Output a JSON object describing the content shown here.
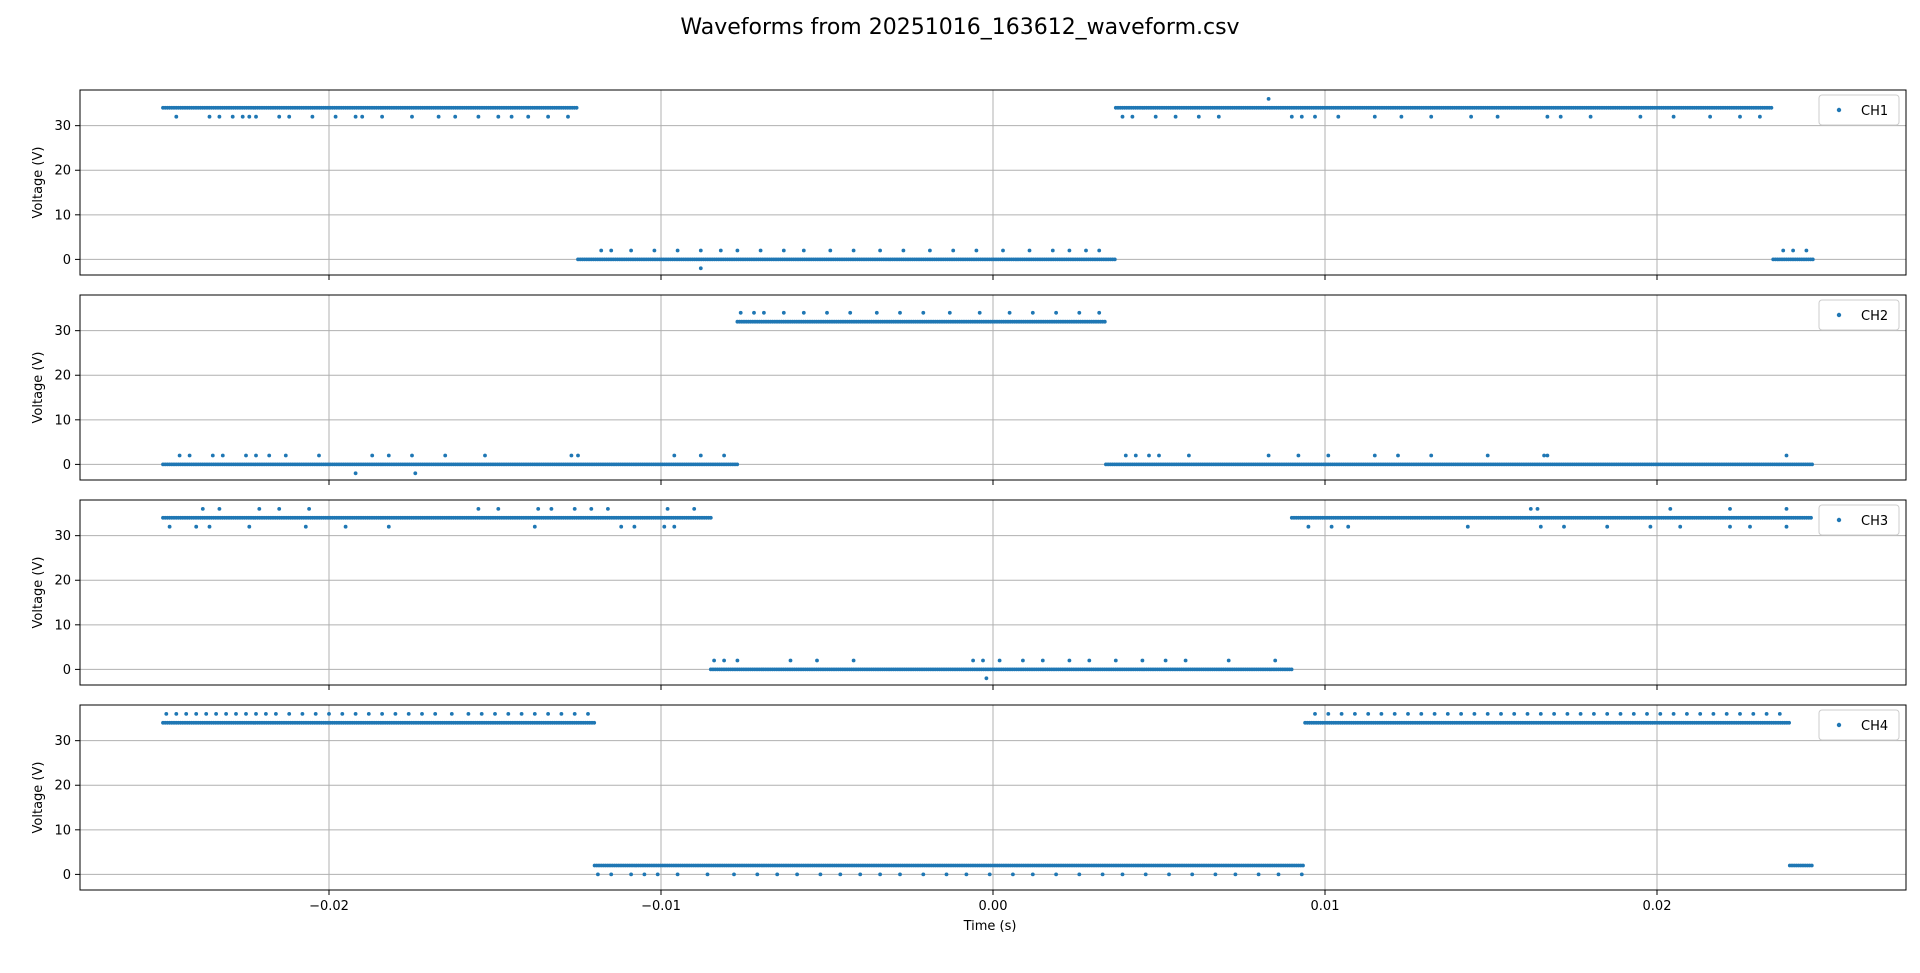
{
  "figure": {
    "title": "Waveforms from 20251016_163612_waveform.csv",
    "xlabel": "Time (s)",
    "ylabel": "Voltage (V)"
  },
  "colors": {
    "series": "#1f77b4",
    "grid": "#b0b0b0",
    "axes": "#000000"
  },
  "chart_data": [
    {
      "type": "scatter",
      "legend": "CH1",
      "legend_placement": "top-right",
      "xlim": [
        -0.0275,
        0.0275
      ],
      "ylim": [
        -3.5,
        38.0
      ],
      "x_ticks": [
        -0.02,
        -0.01,
        0.0,
        0.01,
        0.02
      ],
      "x_tick_labels": [],
      "y_ticks": [
        0,
        10,
        20,
        30
      ],
      "y_tick_labels": [
        "0",
        "10",
        "20",
        "30"
      ],
      "grid": true,
      "runs": [
        {
          "x": [
            -0.025,
            -0.0125
          ],
          "y": 34.0
        },
        {
          "x": [
            -0.0125,
            0.0037
          ],
          "y": 0.0
        },
        {
          "x": [
            0.0037,
            0.0235
          ],
          "y": 34.0
        },
        {
          "x": [
            0.0235,
            0.0247
          ],
          "y": 0.0
        }
      ],
      "outliers": [
        {
          "x": [
            -0.0246,
            -0.0236,
            -0.0233,
            -0.0229,
            -0.0226,
            -0.0224,
            -0.0222,
            -0.0215,
            -0.0212,
            -0.0205,
            -0.0198,
            -0.0192,
            -0.019,
            -0.0184,
            -0.0175,
            -0.0167,
            -0.0162,
            -0.0155,
            -0.0149,
            -0.0145,
            -0.014,
            -0.0134,
            -0.0128
          ],
          "y": 32.0
        },
        {
          "x": [
            -0.0118,
            -0.0115,
            -0.0109,
            -0.0102,
            -0.0095,
            -0.0088,
            -0.0082,
            -0.0077,
            -0.007,
            -0.0063,
            -0.0057,
            -0.0049,
            -0.0042,
            -0.0034,
            -0.0027,
            -0.0019,
            -0.0012,
            -0.0005,
            0.0003,
            0.0011,
            0.0018,
            0.0023,
            0.0028,
            0.0032
          ],
          "y": 2.0
        },
        {
          "x": [
            -0.0088
          ],
          "y": -2.0
        },
        {
          "x": [
            0.0039,
            0.0042,
            0.0049,
            0.0055,
            0.0062,
            0.0068,
            0.009,
            0.0093,
            0.0097,
            0.0104,
            0.0115,
            0.0123,
            0.0132,
            0.0144,
            0.0152,
            0.0167,
            0.0171,
            0.018,
            0.0195,
            0.0205,
            0.0216,
            0.0225,
            0.0231
          ],
          "y": 32.0
        },
        {
          "x": [
            0.0083
          ],
          "y": 36.0
        },
        {
          "x": [
            0.0238,
            0.0241,
            0.0245
          ],
          "y": 2.0
        }
      ]
    },
    {
      "type": "scatter",
      "legend": "CH2",
      "legend_placement": "top-right",
      "xlim": [
        -0.0275,
        0.0275
      ],
      "ylim": [
        -3.5,
        38.0
      ],
      "x_ticks": [
        -0.02,
        -0.01,
        0.0,
        0.01,
        0.02
      ],
      "x_tick_labels": [],
      "y_ticks": [
        0,
        10,
        20,
        30
      ],
      "y_tick_labels": [
        "0",
        "10",
        "20",
        "30"
      ],
      "grid": true,
      "runs": [
        {
          "x": [
            -0.025,
            -0.0077
          ],
          "y": 0.0
        },
        {
          "x": [
            -0.0077,
            0.0034
          ],
          "y": 32.0
        },
        {
          "x": [
            0.0034,
            0.0247
          ],
          "y": 0.0
        }
      ],
      "outliers": [
        {
          "x": [
            -0.0245,
            -0.0242,
            -0.0235,
            -0.0232,
            -0.0225,
            -0.0222,
            -0.0218,
            -0.0213,
            -0.0203,
            -0.0187,
            -0.0182,
            -0.0175,
            -0.0165,
            -0.0153,
            -0.0127,
            -0.0125,
            -0.0096,
            -0.0088,
            -0.0081
          ],
          "y": 2.0
        },
        {
          "x": [
            -0.0192,
            -0.0174
          ],
          "y": -2.0
        },
        {
          "x": [
            -0.0076,
            -0.0072,
            -0.0069,
            -0.0063,
            -0.0057,
            -0.005,
            -0.0043,
            -0.0035,
            -0.0028,
            -0.0021,
            -0.0013,
            -0.0004,
            0.0005,
            0.0012,
            0.0019,
            0.0026,
            0.0032
          ],
          "y": 34.0
        },
        {
          "x": [
            0.004,
            0.0043,
            0.0047,
            0.005,
            0.0059,
            0.0083,
            0.0092,
            0.0101,
            0.0115,
            0.0122,
            0.0132,
            0.0149,
            0.0166,
            0.0167,
            0.0239
          ],
          "y": 2.0
        }
      ]
    },
    {
      "type": "scatter",
      "legend": "CH3",
      "legend_placement": "top-right",
      "xlim": [
        -0.0275,
        0.0275
      ],
      "ylim": [
        -3.5,
        38.0
      ],
      "x_ticks": [
        -0.02,
        -0.01,
        0.0,
        0.01,
        0.02
      ],
      "x_tick_labels": [],
      "y_ticks": [
        0,
        10,
        20,
        30
      ],
      "y_tick_labels": [
        "0",
        "10",
        "20",
        "30"
      ],
      "grid": true,
      "runs": [
        {
          "x": [
            -0.025,
            -0.0085
          ],
          "y": 34.0
        },
        {
          "x": [
            -0.0085,
            0.009
          ],
          "y": 0.0
        },
        {
          "x": [
            0.009,
            0.0247
          ],
          "y": 34.0
        }
      ],
      "outliers": [
        {
          "x": [
            -0.0238,
            -0.0233,
            -0.0221,
            -0.0215,
            -0.0206,
            -0.0155,
            -0.0149,
            -0.0137,
            -0.0133,
            -0.0126,
            -0.0121,
            -0.0116,
            -0.0098,
            -0.009
          ],
          "y": 36.0
        },
        {
          "x": [
            -0.0248,
            -0.024,
            -0.0236,
            -0.0224,
            -0.0207,
            -0.0195,
            -0.0182,
            -0.0138,
            -0.0112,
            -0.0108,
            -0.0099,
            -0.0096
          ],
          "y": 32.0
        },
        {
          "x": [
            -0.0084,
            -0.0081,
            -0.0077,
            -0.0061,
            -0.0053,
            -0.0042,
            -0.0006,
            -0.0003,
            0.0002,
            0.0009,
            0.0015,
            0.0023,
            0.0029,
            0.0037,
            0.0045,
            0.0052,
            0.0058,
            0.0071,
            0.0085
          ],
          "y": 2.0
        },
        {
          "x": [
            -0.0002
          ],
          "y": -2.0
        },
        {
          "x": [
            0.0095,
            0.0102,
            0.0107,
            0.0143,
            0.0165,
            0.0172,
            0.0185,
            0.0198,
            0.0207,
            0.0222,
            0.0228,
            0.0239
          ],
          "y": 32.0
        },
        {
          "x": [
            0.0162,
            0.0164,
            0.0204,
            0.0222,
            0.0239
          ],
          "y": 36.0
        }
      ]
    },
    {
      "type": "scatter",
      "legend": "CH4",
      "legend_placement": "top-right",
      "xlim": [
        -0.0275,
        0.0275
      ],
      "ylim": [
        -3.5,
        38.0
      ],
      "x_ticks": [
        -0.02,
        -0.01,
        0.0,
        0.01,
        0.02
      ],
      "x_tick_labels": [
        "−0.02",
        "−0.01",
        "0.00",
        "0.01",
        "0.02"
      ],
      "y_ticks": [
        0,
        10,
        20,
        30
      ],
      "y_tick_labels": [
        "0",
        "10",
        "20",
        "30"
      ],
      "grid": true,
      "runs": [
        {
          "x": [
            -0.025,
            -0.012
          ],
          "y": 34.0
        },
        {
          "x": [
            -0.012,
            0.0094
          ],
          "y": 2.0
        },
        {
          "x": [
            0.0094,
            0.024
          ],
          "y": 34.0
        },
        {
          "x": [
            0.024,
            0.0247
          ],
          "y": 2.0
        }
      ],
      "outliers": [
        {
          "x": [
            -0.0249,
            -0.0246,
            -0.0243,
            -0.024,
            -0.0237,
            -0.0234,
            -0.0231,
            -0.0228,
            -0.0225,
            -0.0222,
            -0.0219,
            -0.0216,
            -0.0212,
            -0.0208,
            -0.0204,
            -0.02,
            -0.0196,
            -0.0192,
            -0.0188,
            -0.0184,
            -0.018,
            -0.0176,
            -0.0172,
            -0.0168,
            -0.0163,
            -0.0158,
            -0.0154,
            -0.015,
            -0.0146,
            -0.0142,
            -0.0138,
            -0.0134,
            -0.013,
            -0.0126,
            -0.0122
          ],
          "y": 36.0
        },
        {
          "x": [
            -0.0119,
            -0.0115,
            -0.0109,
            -0.0105,
            -0.0101,
            -0.0095,
            -0.0086,
            -0.0078,
            -0.0071,
            -0.0065,
            -0.0059,
            -0.0052,
            -0.0046,
            -0.004,
            -0.0034,
            -0.0028,
            -0.0021,
            -0.0014,
            -0.0008,
            -0.0001,
            0.0006,
            0.0012,
            0.0019,
            0.0026,
            0.0033,
            0.0039,
            0.0046,
            0.0053,
            0.006,
            0.0067,
            0.0073,
            0.008,
            0.0086,
            0.0093
          ],
          "y": 0.0
        },
        {
          "x": [
            0.0097,
            0.0101,
            0.0105,
            0.0109,
            0.0113,
            0.0117,
            0.0121,
            0.0125,
            0.0129,
            0.0133,
            0.0137,
            0.0141,
            0.0145,
            0.0149,
            0.0153,
            0.0157,
            0.0161,
            0.0165,
            0.0169,
            0.0173,
            0.0177,
            0.0181,
            0.0185,
            0.0189,
            0.0193,
            0.0197,
            0.0201,
            0.0205,
            0.0209,
            0.0213,
            0.0217,
            0.0221,
            0.0225,
            0.0229,
            0.0233,
            0.0237
          ],
          "y": 36.0
        }
      ]
    }
  ]
}
